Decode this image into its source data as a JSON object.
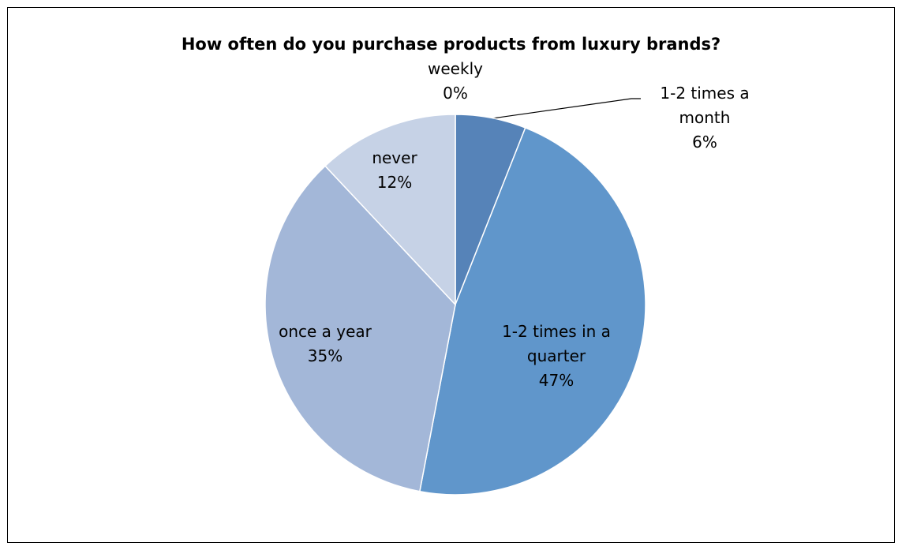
{
  "chart_data": {
    "type": "pie",
    "title": "How often do you purchase products from luxury brands?",
    "categories": [
      "weekly",
      "1-2 times a month",
      "1-2 times in a quarter",
      "once a year",
      "never"
    ],
    "values": [
      0,
      6,
      47,
      35,
      12
    ],
    "value_labels": [
      "0%",
      "6%",
      "47%",
      "35%",
      "12%"
    ],
    "colors": [
      "#4f7fb5",
      "#5683b8",
      "#6096cb",
      "#a3b7d8",
      "#c6d2e6"
    ]
  }
}
